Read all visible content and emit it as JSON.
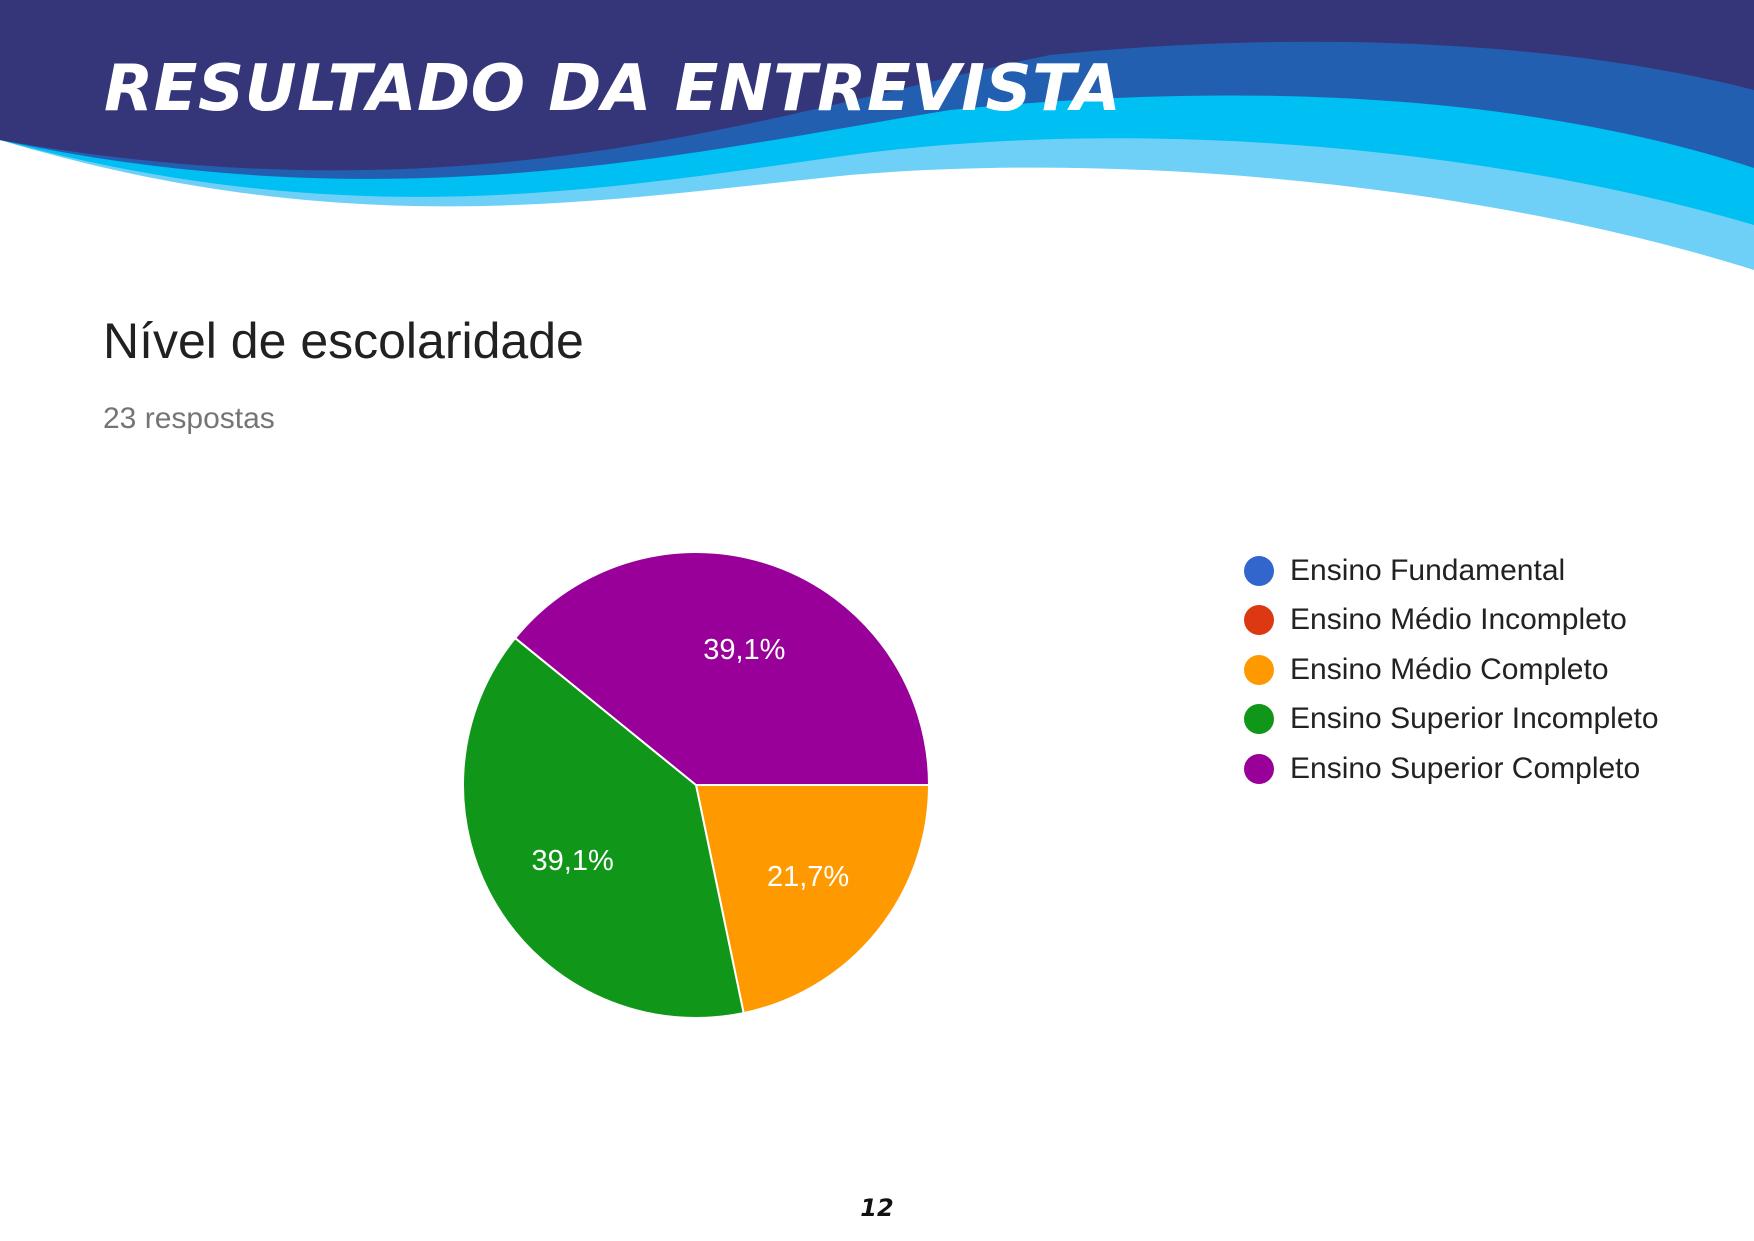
{
  "header": {
    "title": "RESULTADO DA ENTREVISTA",
    "wave_colors": [
      "#35367a",
      "#225fb0",
      "#00bff3",
      "#6ed0f6"
    ]
  },
  "chart_data": {
    "type": "pie",
    "title": "Nível de escolaridade",
    "subtitle": "23 respostas",
    "legend_position": "right",
    "categories": [
      "Ensino Fundamental",
      "Ensino Médio Incompleto",
      "Ensino Médio Completo",
      "Ensino Superior Incompleto",
      "Ensino Superior Completo"
    ],
    "values": [
      0,
      0,
      21.7,
      39.1,
      39.1
    ],
    "data_labels": [
      "",
      "",
      "21,7%",
      "39,1%",
      "39,1%"
    ],
    "colors": [
      "#3366cc",
      "#dc3912",
      "#ff9900",
      "#109618",
      "#990099"
    ]
  },
  "page_number": "12"
}
